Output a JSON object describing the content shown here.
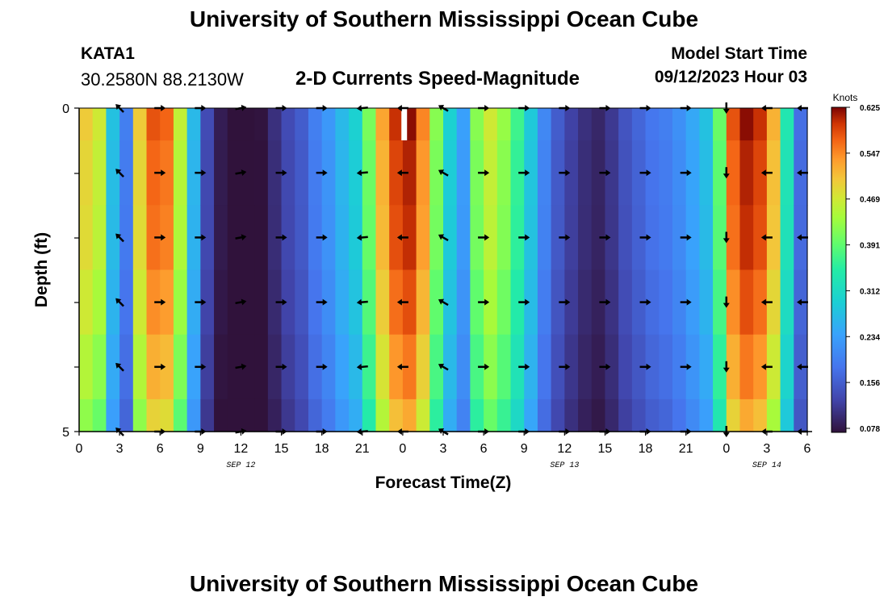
{
  "header": {
    "title": "University of Southern Mississippi Ocean Cube",
    "station": "KATA1",
    "coords": "30.2580N  88.2130W",
    "subtitle": "2-D Currents Speed-Magnitude",
    "model_start_label": "Model Start Time",
    "model_start_value": "09/12/2023 Hour 03"
  },
  "footer": {
    "title": "University of Southern Mississippi Ocean Cube"
  },
  "chart_data": {
    "type": "heatmap",
    "title": "2-D Currents Speed-Magnitude",
    "xlabel": "Forecast Time(Z)",
    "ylabel": "Depth (ft)",
    "x_range_hours": [
      0,
      54
    ],
    "y_range_ft": [
      0,
      5
    ],
    "x_ticks": [
      "0",
      "3",
      "6",
      "9",
      "12",
      "15",
      "18",
      "21",
      "0",
      "3",
      "6",
      "9",
      "12",
      "15",
      "18",
      "21",
      "0",
      "3",
      "6"
    ],
    "y_ticks": [
      "0",
      "",
      "",
      "",
      "",
      "5"
    ],
    "date_labels": [
      {
        "hour": 12,
        "text": "SEP 12"
      },
      {
        "hour": 36,
        "text": "SEP 13"
      },
      {
        "hour": 51,
        "text": "SEP 14"
      }
    ],
    "colorbar": {
      "label": "Knots",
      "ticks": [
        "0.625",
        "0.547",
        "0.469",
        "0.391",
        "0.312",
        "0.234",
        "0.156",
        "0.078"
      ],
      "min": 0.078,
      "max": 0.625
    },
    "depth_levels_ft": [
      0,
      1,
      2,
      3,
      4,
      5
    ],
    "speed_knots_by_hour": [
      0.5,
      0.47,
      0.28,
      0.2,
      0.5,
      0.58,
      0.57,
      0.46,
      0.27,
      0.14,
      0.09,
      0.07,
      0.06,
      0.08,
      0.11,
      0.14,
      0.16,
      0.2,
      0.23,
      0.27,
      0.3,
      0.41,
      0.53,
      0.6,
      0.62,
      0.55,
      0.42,
      0.3,
      0.24,
      0.42,
      0.47,
      0.43,
      0.37,
      0.29,
      0.21,
      0.16,
      0.13,
      0.11,
      0.1,
      0.12,
      0.15,
      0.17,
      0.19,
      0.2,
      0.22,
      0.25,
      0.28,
      0.4,
      0.58,
      0.62,
      0.6,
      0.52,
      0.34,
      0.18
    ],
    "depth_factors": [
      1.0,
      0.98,
      0.97,
      0.94,
      0.9,
      0.85
    ],
    "arrow_hours": [
      3,
      6,
      9,
      12,
      15,
      18,
      21,
      24,
      27,
      30,
      33,
      36,
      39,
      42,
      45,
      48,
      51,
      54
    ],
    "arrow_angles_deg": [
      -135,
      0,
      0,
      -10,
      0,
      0,
      175,
      180,
      -150,
      0,
      0,
      0,
      0,
      0,
      0,
      90,
      180,
      180
    ]
  }
}
